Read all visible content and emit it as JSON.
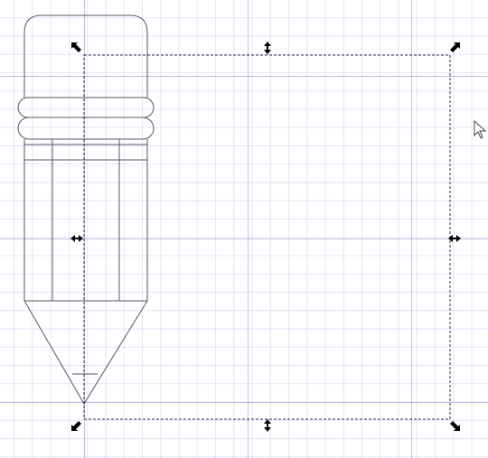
{
  "canvas": {
    "grid_minor_color": "#c8c8f0",
    "grid_major_color": "#9f9fdc",
    "background": "#ffffff"
  },
  "drawing": {
    "object": "pencil",
    "stroke_color": "#555566"
  },
  "selection": {
    "style": "dashed",
    "handles": [
      "top-left",
      "top-center",
      "top-right",
      "middle-left",
      "middle-right",
      "bottom-left",
      "bottom-center",
      "bottom-right"
    ]
  },
  "cursor": {
    "icon": "mouse-pointer-icon"
  }
}
